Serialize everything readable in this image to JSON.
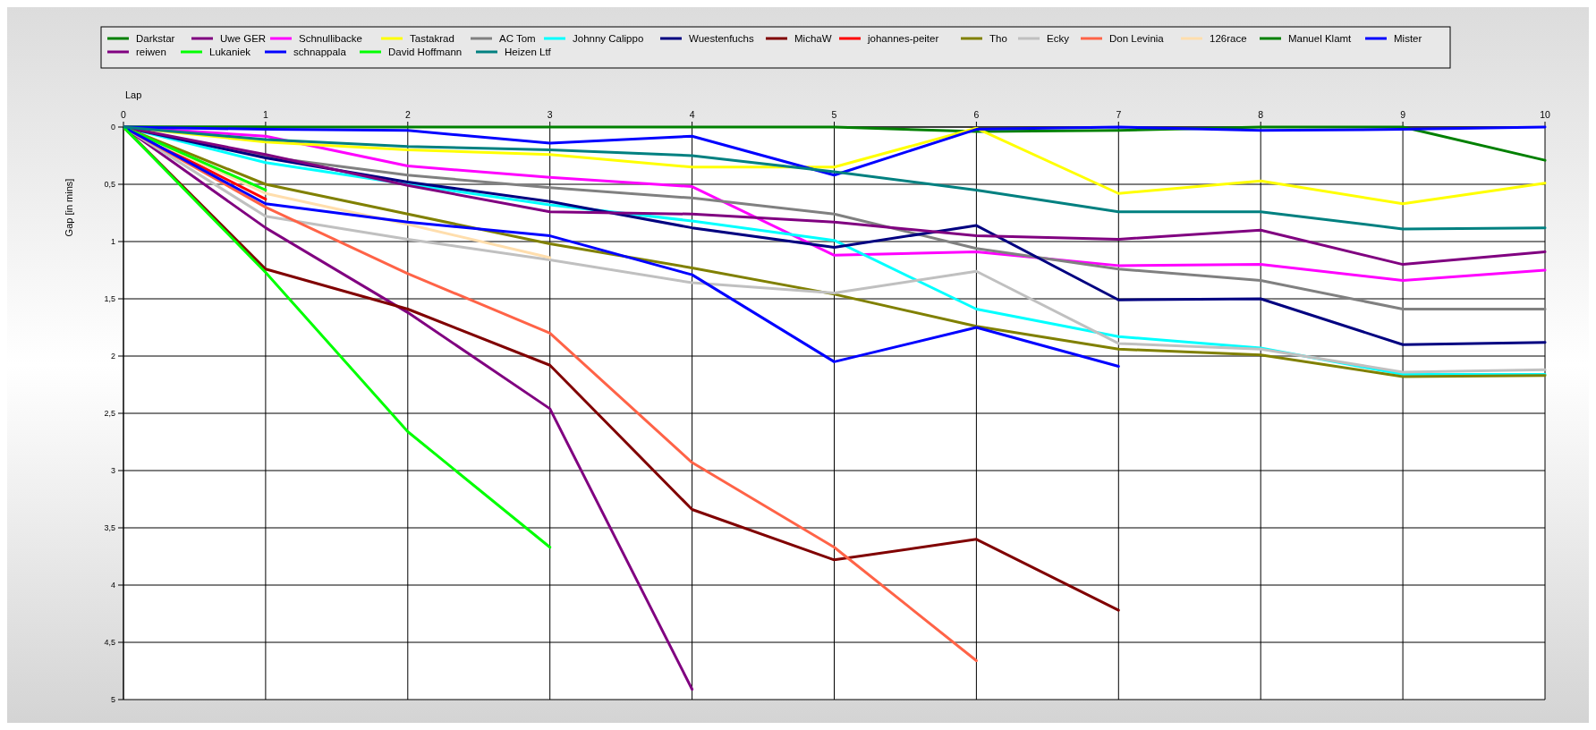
{
  "chart_data": {
    "type": "line",
    "xlabel": "Lap",
    "ylabel": "Gap [in mins]",
    "x": [
      0,
      1,
      2,
      3,
      4,
      5,
      6,
      7,
      8,
      9,
      10
    ],
    "xlim": [
      0,
      10
    ],
    "xticks": [
      0,
      1,
      2,
      3,
      4,
      5,
      6,
      7,
      8,
      9,
      10
    ],
    "ylim": [
      5,
      0
    ],
    "yticks": [
      0,
      {
        "value": 0.5,
        "label": "0,5"
      },
      1,
      {
        "value": 1.5,
        "label": "1,5"
      },
      2,
      {
        "value": 2.5,
        "label": "2,5"
      },
      3,
      {
        "value": 3.5,
        "label": "3,5"
      },
      4,
      {
        "value": 4.5,
        "label": "4,5"
      },
      5
    ],
    "grid": true,
    "legend": "top",
    "line_style": "solid",
    "marker": "none",
    "series": [
      {
        "name": "Darkstar",
        "color": "#008000",
        "values": [
          0,
          0,
          0,
          0,
          0,
          0,
          0.04,
          0.03,
          0,
          0,
          0.29
        ]
      },
      {
        "name": "Uwe GER",
        "color": "#800080",
        "values": [
          0,
          0.88,
          1.62,
          2.46,
          4.91,
          null,
          null,
          null,
          null,
          null,
          null
        ]
      },
      {
        "name": "Schnullibacke",
        "color": "#ff00ff",
        "values": [
          0,
          0.08,
          0.34,
          0.44,
          0.52,
          1.12,
          1.09,
          1.21,
          1.2,
          1.34,
          1.25
        ]
      },
      {
        "name": "Tastakrad",
        "color": "#ffff00",
        "values": [
          0,
          0.13,
          0.2,
          0.24,
          0.35,
          0.35,
          0.01,
          0.58,
          0.47,
          0.67,
          0.49
        ]
      },
      {
        "name": "AC Tom",
        "color": "#808080",
        "values": [
          0,
          0.26,
          0.42,
          0.53,
          0.62,
          0.76,
          1.06,
          1.24,
          1.34,
          1.59,
          1.59
        ]
      },
      {
        "name": "Johnny Calippo",
        "color": "#00ffff",
        "values": [
          0,
          0.31,
          0.5,
          0.68,
          0.82,
          0.99,
          1.59,
          1.83,
          1.93,
          2.16,
          2.16
        ]
      },
      {
        "name": "Wuestenfuchs",
        "color": "#000080",
        "values": [
          0,
          0.27,
          0.48,
          0.65,
          0.88,
          1.05,
          0.86,
          1.51,
          1.5,
          1.9,
          1.88
        ]
      },
      {
        "name": "MichaW",
        "color": "#800000",
        "values": [
          0,
          1.24,
          1.59,
          2.08,
          3.34,
          3.78,
          3.6,
          4.22,
          null,
          null,
          null
        ]
      },
      {
        "name": "johannes-peiter",
        "color": "#ff0000",
        "values": [
          0,
          0.63,
          null,
          null,
          null,
          null,
          null,
          null,
          null,
          null,
          null
        ]
      },
      {
        "name": "Tho",
        "color": "#808000",
        "values": [
          0,
          0.5,
          0.76,
          1.02,
          1.23,
          1.46,
          1.74,
          1.94,
          1.99,
          2.18,
          2.17
        ]
      },
      {
        "name": "Ecky",
        "color": "#c0c0c0",
        "values": [
          0,
          0.78,
          0.98,
          1.16,
          1.36,
          1.45,
          1.26,
          1.89,
          1.94,
          2.14,
          2.12
        ]
      },
      {
        "name": "Don Levinia",
        "color": "#ff6347",
        "values": [
          0,
          0.7,
          1.28,
          1.8,
          2.93,
          3.67,
          4.66,
          null,
          null,
          null,
          null
        ]
      },
      {
        "name": "126race",
        "color": "#ffdead",
        "values": [
          0,
          0.58,
          0.85,
          1.14,
          null,
          null,
          null,
          null,
          null,
          null,
          null
        ]
      },
      {
        "name": "Manuel Klamt",
        "color": "#008000",
        "values": [
          0,
          0,
          null,
          null,
          null,
          null,
          null,
          null,
          null,
          null,
          null
        ]
      },
      {
        "name": "Mister",
        "color": "#0000ff",
        "values": [
          0,
          0.02,
          0.03,
          0.14,
          0.08,
          0.42,
          0.02,
          0,
          0.03,
          0.02,
          0
        ]
      },
      {
        "name": "reiwen",
        "color": "#800080",
        "values": [
          0,
          0.24,
          0.51,
          0.74,
          0.76,
          0.83,
          0.95,
          0.98,
          0.9,
          1.2,
          1.09
        ]
      },
      {
        "name": "Lukaniek",
        "color": "#00ff00",
        "values": [
          0,
          0.55,
          null,
          null,
          null,
          null,
          null,
          null,
          null,
          null,
          null
        ]
      },
      {
        "name": "schnappala",
        "color": "#0000ff",
        "values": [
          0,
          0.67,
          0.83,
          0.95,
          1.29,
          2.05,
          1.75,
          2.09,
          null,
          null,
          null
        ]
      },
      {
        "name": "David Hoffmann",
        "color": "#00ff00",
        "values": [
          0,
          1.27,
          2.66,
          3.67,
          null,
          null,
          null,
          null,
          null,
          null,
          null
        ]
      },
      {
        "name": "Heizen Ltf",
        "color": "#008080",
        "values": [
          0,
          0.11,
          0.17,
          0.2,
          0.25,
          0.39,
          0.55,
          0.74,
          0.74,
          0.89,
          0.88
        ]
      }
    ]
  }
}
